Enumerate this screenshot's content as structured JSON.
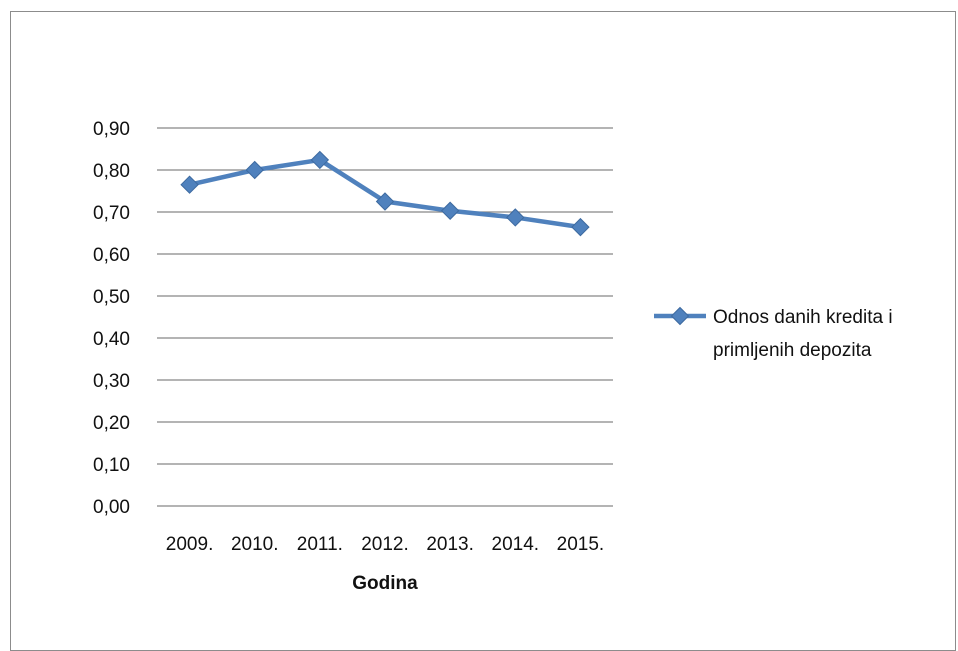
{
  "chart_data": {
    "type": "line",
    "categories": [
      "2009.",
      "2010.",
      "2011.",
      "2012.",
      "2013.",
      "2014.",
      "2015."
    ],
    "series": [
      {
        "name": "Odnos danih kredita i primljenih depozita",
        "values": [
          0.765,
          0.8,
          0.824,
          0.725,
          0.703,
          0.687,
          0.664
        ],
        "color": "#4f81bd",
        "marker": "diamond"
      }
    ],
    "yticks": [
      "0,00",
      "0,10",
      "0,20",
      "0,30",
      "0,40",
      "0,50",
      "0,60",
      "0,70",
      "0,80",
      "0,90"
    ],
    "ylim": [
      0,
      0.9
    ],
    "xlabel": "Godina",
    "ylabel": "",
    "title": "",
    "grid": true,
    "legend": {
      "position": "right",
      "lines": [
        "Odnos danih kredita i",
        "primljenih depozita"
      ]
    },
    "gridline_color": "#868686"
  }
}
